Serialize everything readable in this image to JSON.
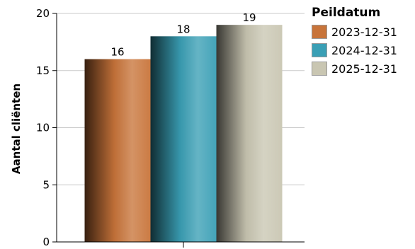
{
  "chart_data": {
    "type": "bar",
    "categories": [
      ""
    ],
    "series": [
      {
        "name": "2023-12-31",
        "values": [
          16
        ],
        "color": "#c8743a"
      },
      {
        "name": "2024-12-31",
        "values": [
          18
        ],
        "color": "#3a9fb5"
      },
      {
        "name": "2025-12-31",
        "values": [
          19
        ],
        "color": "#c9c6b2"
      }
    ],
    "ylabel": "Aantal cliënten",
    "ylim": [
      0,
      20
    ],
    "yticks": [
      0,
      5,
      10,
      15,
      20
    ],
    "data_labels": [
      "16",
      "18",
      "19"
    ],
    "grid": true,
    "legend": {
      "title": "Peildatum",
      "position": "top-right"
    }
  }
}
